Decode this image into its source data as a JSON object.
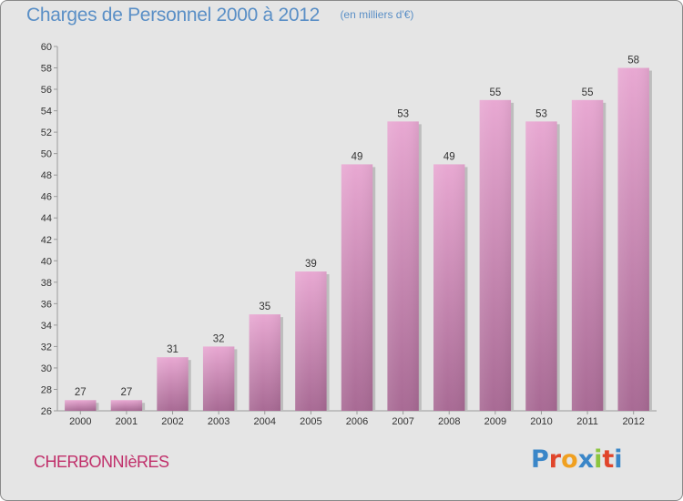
{
  "header": {
    "title": "Charges de Personnel 2000 à 2012",
    "subtitle": "(en milliers d'€)"
  },
  "commune": "CHERBONNIèRES",
  "logo": {
    "text": "Proxiti",
    "letter_colors": [
      "#3a86c8",
      "#e0452b",
      "#f0a020",
      "#3a86c8",
      "#8bc53f",
      "#e0452b",
      "#3a86c8"
    ]
  },
  "colors": {
    "bar_top": "#e8a8d2",
    "bar_bottom": "#a86a94",
    "bar_shadow": "#bdbdbd",
    "background": "#e5e5e5",
    "title": "#5a8fc6",
    "commune": "#c02f6a"
  },
  "chart_data": {
    "type": "bar",
    "title": "Charges de Personnel 2000 à 2012",
    "subtitle": "(en milliers d'€)",
    "categories": [
      "2000",
      "2001",
      "2002",
      "2003",
      "2004",
      "2005",
      "2006",
      "2007",
      "2008",
      "2009",
      "2010",
      "2011",
      "2012"
    ],
    "values": [
      27,
      27,
      31,
      32,
      35,
      39,
      49,
      53,
      49,
      55,
      53,
      55,
      58
    ],
    "ylim": [
      26,
      60
    ],
    "ytick_step": 2,
    "grid": false,
    "legend": "none"
  }
}
